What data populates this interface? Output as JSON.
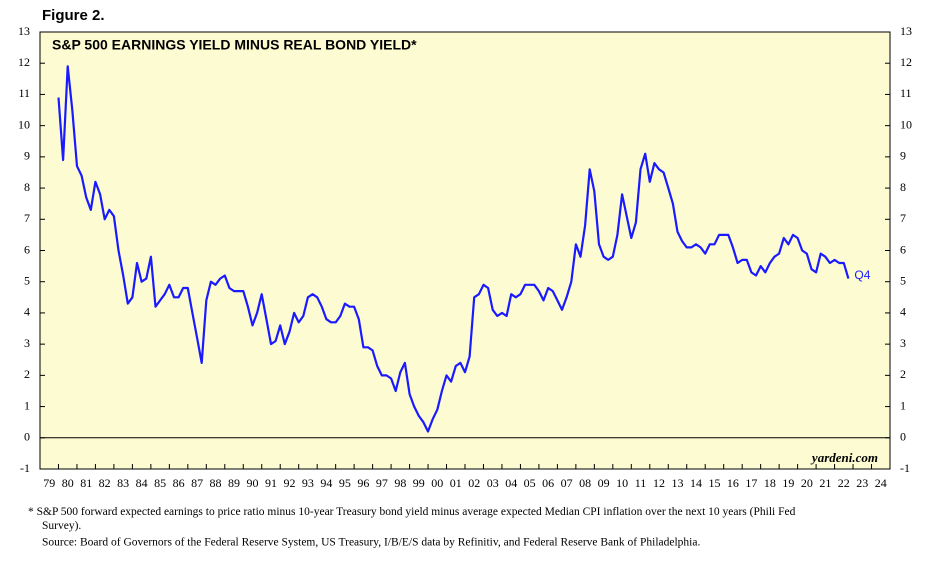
{
  "figure_label": "Figure 2.",
  "chart_data": {
    "type": "line",
    "title": "S&P 500 EARNINGS YIELD MINUS REAL BOND YIELD*",
    "source_note": "yardeni.com",
    "annotation": "Q4",
    "footnote": "*  S&P 500 forward expected earnings to price ratio minus 10-year Treasury bond yield minus average expected Median CPI inflation over the next 10 years (Phili Fed Survey).",
    "source": "Source: Board of Governors of the Federal Reserve System, US Treasury, I/B/E/S data by Refinitiv, and Federal Reserve Bank of Philadelphia.",
    "color": "#1a1aff",
    "xlim": [
      1979,
      2025
    ],
    "ylim": [
      -1,
      13
    ],
    "yticks": [
      -1,
      0,
      1,
      2,
      3,
      4,
      5,
      6,
      7,
      8,
      9,
      10,
      11,
      12,
      13
    ],
    "xticks": [
      {
        "value": 1979,
        "label": "79"
      },
      {
        "value": 1980,
        "label": "80"
      },
      {
        "value": 1981,
        "label": "81"
      },
      {
        "value": 1982,
        "label": "82"
      },
      {
        "value": 1983,
        "label": "83"
      },
      {
        "value": 1984,
        "label": "84"
      },
      {
        "value": 1985,
        "label": "85"
      },
      {
        "value": 1986,
        "label": "86"
      },
      {
        "value": 1987,
        "label": "87"
      },
      {
        "value": 1988,
        "label": "88"
      },
      {
        "value": 1989,
        "label": "89"
      },
      {
        "value": 1990,
        "label": "90"
      },
      {
        "value": 1991,
        "label": "91"
      },
      {
        "value": 1992,
        "label": "92"
      },
      {
        "value": 1993,
        "label": "93"
      },
      {
        "value": 1994,
        "label": "94"
      },
      {
        "value": 1995,
        "label": "95"
      },
      {
        "value": 1996,
        "label": "96"
      },
      {
        "value": 1997,
        "label": "97"
      },
      {
        "value": 1998,
        "label": "98"
      },
      {
        "value": 1999,
        "label": "99"
      },
      {
        "value": 2000,
        "label": "00"
      },
      {
        "value": 2001,
        "label": "01"
      },
      {
        "value": 2002,
        "label": "02"
      },
      {
        "value": 2003,
        "label": "03"
      },
      {
        "value": 2004,
        "label": "04"
      },
      {
        "value": 2005,
        "label": "05"
      },
      {
        "value": 2006,
        "label": "06"
      },
      {
        "value": 2007,
        "label": "07"
      },
      {
        "value": 2008,
        "label": "08"
      },
      {
        "value": 2009,
        "label": "09"
      },
      {
        "value": 2010,
        "label": "10"
      },
      {
        "value": 2011,
        "label": "11"
      },
      {
        "value": 2012,
        "label": "12"
      },
      {
        "value": 2013,
        "label": "13"
      },
      {
        "value": 2014,
        "label": "14"
      },
      {
        "value": 2015,
        "label": "15"
      },
      {
        "value": 2016,
        "label": "16"
      },
      {
        "value": 2017,
        "label": "17"
      },
      {
        "value": 2018,
        "label": "18"
      },
      {
        "value": 2019,
        "label": "19"
      },
      {
        "value": 2020,
        "label": "20"
      },
      {
        "value": 2021,
        "label": "21"
      },
      {
        "value": 2022,
        "label": "22"
      },
      {
        "value": 2023,
        "label": "23"
      },
      {
        "value": 2024,
        "label": "24"
      }
    ],
    "x": [
      1980,
      1980.25,
      1980.5,
      1980.75,
      1981,
      1981.25,
      1981.5,
      1981.75,
      1982,
      1982.25,
      1982.5,
      1982.75,
      1983,
      1983.25,
      1983.5,
      1983.75,
      1984,
      1984.25,
      1984.5,
      1984.75,
      1985,
      1985.25,
      1985.5,
      1985.75,
      1986,
      1986.25,
      1986.5,
      1986.75,
      1987,
      1987.25,
      1987.5,
      1987.75,
      1988,
      1988.25,
      1988.5,
      1988.75,
      1989,
      1989.25,
      1989.5,
      1989.75,
      1990,
      1990.25,
      1990.5,
      1990.75,
      1991,
      1991.25,
      1991.5,
      1991.75,
      1992,
      1992.25,
      1992.5,
      1992.75,
      1993,
      1993.25,
      1993.5,
      1993.75,
      1994,
      1994.25,
      1994.5,
      1994.75,
      1995,
      1995.25,
      1995.5,
      1995.75,
      1996,
      1996.25,
      1996.5,
      1996.75,
      1997,
      1997.25,
      1997.5,
      1997.75,
      1998,
      1998.25,
      1998.5,
      1998.75,
      1999,
      1999.25,
      1999.5,
      1999.75,
      2000,
      2000.25,
      2000.5,
      2000.75,
      2001,
      2001.25,
      2001.5,
      2001.75,
      2002,
      2002.25,
      2002.5,
      2002.75,
      2003,
      2003.25,
      2003.5,
      2003.75,
      2004,
      2004.25,
      2004.5,
      2004.75,
      2005,
      2005.25,
      2005.5,
      2005.75,
      2006,
      2006.25,
      2006.5,
      2006.75,
      2007,
      2007.25,
      2007.5,
      2007.75,
      2008,
      2008.25,
      2008.5,
      2008.75,
      2009,
      2009.25,
      2009.5,
      2009.75,
      2010,
      2010.25,
      2010.5,
      2010.75,
      2011,
      2011.25,
      2011.5,
      2011.75,
      2012,
      2012.25,
      2012.5,
      2012.75,
      2013,
      2013.25,
      2013.5,
      2013.75,
      2014,
      2014.25,
      2014.5,
      2014.75,
      2015,
      2015.25,
      2015.5,
      2015.75,
      2016,
      2016.25,
      2016.5,
      2016.75,
      2017,
      2017.25,
      2017.5,
      2017.75,
      2018,
      2018.25,
      2018.5,
      2018.75,
      2019,
      2019.25,
      2019.5,
      2019.75,
      2020,
      2020.25,
      2020.5,
      2020.75,
      2021,
      2021.25,
      2021.5,
      2021.75,
      2022,
      2022.25,
      2022.5,
      2022.75
    ],
    "values": [
      10.9,
      8.9,
      11.9,
      10.5,
      8.7,
      8.4,
      7.7,
      7.3,
      8.2,
      7.8,
      7.0,
      7.3,
      7.1,
      6.0,
      5.2,
      4.3,
      4.5,
      5.6,
      5.0,
      5.1,
      5.8,
      4.2,
      4.4,
      4.6,
      4.9,
      4.5,
      4.5,
      4.8,
      4.8,
      4.0,
      3.2,
      2.4,
      4.4,
      5.0,
      4.9,
      5.1,
      5.2,
      4.8,
      4.7,
      4.7,
      4.7,
      4.2,
      3.6,
      4.0,
      4.6,
      3.8,
      3.0,
      3.1,
      3.6,
      3.0,
      3.4,
      4.0,
      3.7,
      3.9,
      4.5,
      4.6,
      4.5,
      4.2,
      3.8,
      3.7,
      3.7,
      3.9,
      4.3,
      4.2,
      4.2,
      3.8,
      2.9,
      2.9,
      2.8,
      2.3,
      2.0,
      2.0,
      1.9,
      1.5,
      2.1,
      2.4,
      1.4,
      1.0,
      0.7,
      0.5,
      0.2,
      0.6,
      0.9,
      1.5,
      2.0,
      1.8,
      2.3,
      2.4,
      2.1,
      2.6,
      4.5,
      4.6,
      4.9,
      4.8,
      4.1,
      3.9,
      4.0,
      3.9,
      4.6,
      4.5,
      4.6,
      4.9,
      4.9,
      4.9,
      4.7,
      4.4,
      4.8,
      4.7,
      4.4,
      4.1,
      4.5,
      5.0,
      6.2,
      5.8,
      6.8,
      8.6,
      7.9,
      6.2,
      5.8,
      5.7,
      5.8,
      6.5,
      7.8,
      7.1,
      6.4,
      6.9,
      8.6,
      9.1,
      8.2,
      8.8,
      8.6,
      8.5,
      8.0,
      7.5,
      6.6,
      6.3,
      6.1,
      6.1,
      6.2,
      6.1,
      5.9,
      6.2,
      6.2,
      6.5,
      6.5,
      6.5,
      6.1,
      5.6,
      5.7,
      5.7,
      5.3,
      5.2,
      5.5,
      5.3,
      5.6,
      5.8,
      5.9,
      6.4,
      6.2,
      6.5,
      6.4,
      6.0,
      5.9,
      5.4,
      5.3,
      5.9,
      5.8,
      5.6,
      5.7,
      5.6,
      5.6,
      5.1
    ]
  }
}
